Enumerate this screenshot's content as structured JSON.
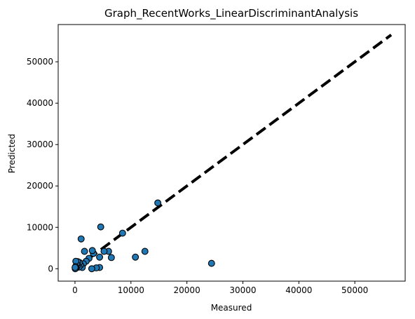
{
  "chart_data": {
    "type": "scatter",
    "title": "Graph_RecentWorks_LinearDiscriminantAnalysis",
    "xlabel": "Measured",
    "ylabel": "Predicted",
    "xlim": [
      -3000,
      59000
    ],
    "ylim": [
      -3000,
      59000
    ],
    "xticks": [
      0,
      10000,
      20000,
      30000,
      40000,
      50000
    ],
    "yticks": [
      0,
      10000,
      20000,
      30000,
      40000,
      50000
    ],
    "grid": false,
    "point_color": "#1f77b4",
    "point_edge_color": "#000000",
    "reference_line": {
      "style": "dashed",
      "color": "#000000",
      "from": [
        0,
        0
      ],
      "to": [
        56500,
        56500
      ]
    },
    "points": [
      {
        "x": 24400,
        "y": 1300
      },
      {
        "x": 14800,
        "y": 15900
      },
      {
        "x": 12500,
        "y": 4200
      },
      {
        "x": 10800,
        "y": 2800
      },
      {
        "x": 8500,
        "y": 8600
      },
      {
        "x": 6500,
        "y": 2700
      },
      {
        "x": 6000,
        "y": 4200
      },
      {
        "x": 5200,
        "y": 4200
      },
      {
        "x": 4600,
        "y": 10100
      },
      {
        "x": 4400,
        "y": 2800
      },
      {
        "x": 4400,
        "y": 300
      },
      {
        "x": 3800,
        "y": 200
      },
      {
        "x": 3300,
        "y": 3700
      },
      {
        "x": 3100,
        "y": 4400
      },
      {
        "x": 3000,
        "y": 0
      },
      {
        "x": 2500,
        "y": 2500
      },
      {
        "x": 2000,
        "y": 1800
      },
      {
        "x": 1700,
        "y": 4200
      },
      {
        "x": 1500,
        "y": 1200
      },
      {
        "x": 1300,
        "y": 300
      },
      {
        "x": 1100,
        "y": 7200
      },
      {
        "x": 1000,
        "y": 900
      },
      {
        "x": 800,
        "y": 1500
      },
      {
        "x": 700,
        "y": 400
      },
      {
        "x": 500,
        "y": 1700
      },
      {
        "x": 400,
        "y": 600
      },
      {
        "x": 300,
        "y": 1100
      },
      {
        "x": 200,
        "y": 200
      },
      {
        "x": 150,
        "y": 1800
      },
      {
        "x": 100,
        "y": 500
      },
      {
        "x": 50,
        "y": 0
      },
      {
        "x": 20,
        "y": 300
      }
    ]
  }
}
